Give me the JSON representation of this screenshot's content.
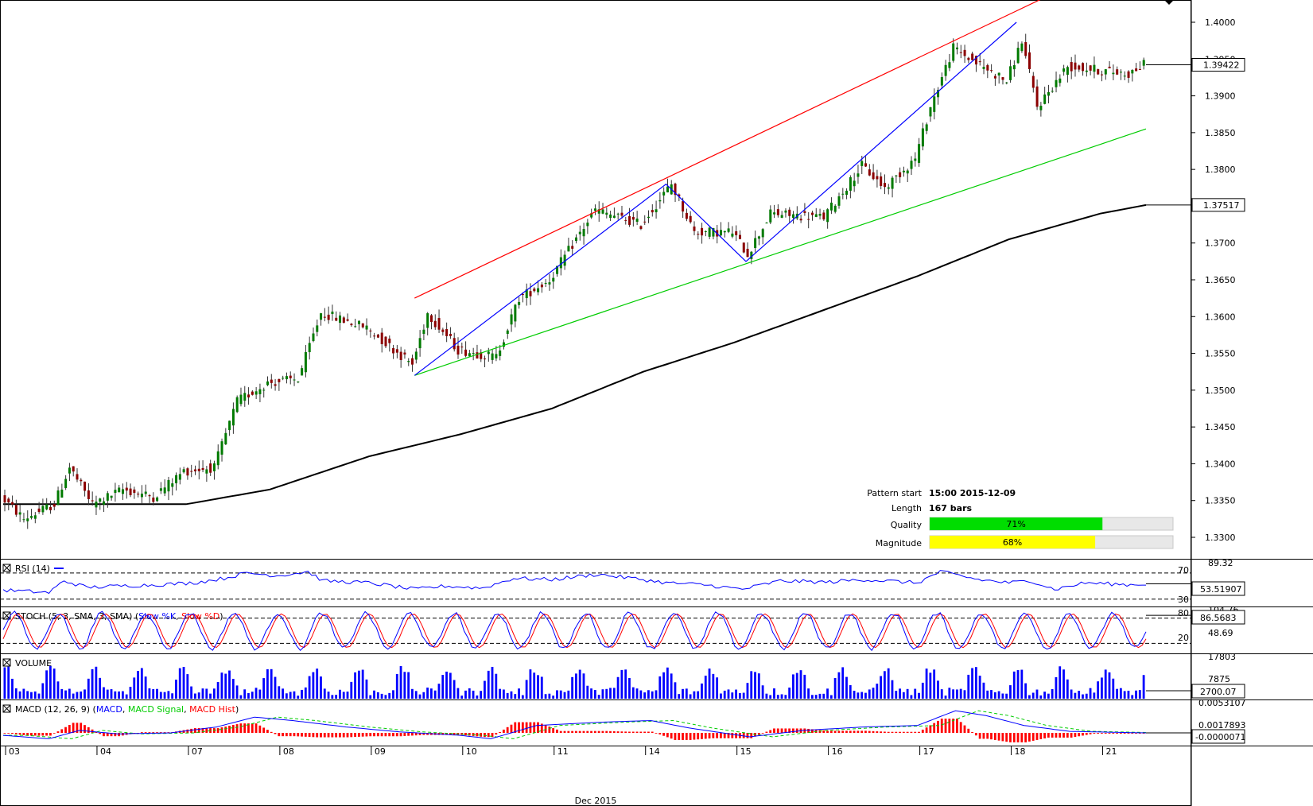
{
  "colors": {
    "bull": "#007a00",
    "bear": "#8b0000",
    "wick": "#333333",
    "ma": "#000000",
    "channel_upper": "#ff0000",
    "channel_lower": "#00cc00",
    "pattern_line": "#0000ff",
    "rsi": "#0000ff",
    "stoch_k": "#0000ff",
    "stoch_d": "#ff0000",
    "volume": "#0000ff",
    "macd": "#0000ff",
    "macd_signal": "#00cc00",
    "macd_hist": "#ff0000",
    "quality_bar": "#00dd00",
    "magnitude_bar": "#ffff00"
  },
  "chart_data": {
    "type": "candlestick",
    "instrument_note": "",
    "price_axis": {
      "ylim": [
        1.3275,
        1.4025
      ],
      "ticks": [
        "1.4000",
        "1.3950",
        "1.3900",
        "1.3850",
        "1.3800",
        "1.3750",
        "1.3700",
        "1.3650",
        "1.3600",
        "1.3550",
        "1.3500",
        "1.3450",
        "1.3400",
        "1.3350",
        "1.3300"
      ],
      "tick_values": [
        1.4,
        1.395,
        1.39,
        1.385,
        1.38,
        1.375,
        1.37,
        1.365,
        1.36,
        1.355,
        1.35,
        1.345,
        1.34,
        1.335,
        1.33
      ]
    },
    "x_axis": {
      "day_labels": [
        "03",
        "04",
        "07",
        "08",
        "09",
        "10",
        "11",
        "14",
        "15",
        "16",
        "17",
        "18",
        "21"
      ],
      "day_bar_index": [
        0,
        24,
        48,
        72,
        96,
        120,
        144,
        168,
        192,
        216,
        240,
        264,
        288
      ],
      "month_label": "Dec 2015",
      "total_bars": 300
    },
    "current_price_tag": "1.39422",
    "current_price": 1.39422,
    "ma_tag": "1.37517",
    "ma_value": 1.37517,
    "ma_path": [
      [
        0,
        1.3345
      ],
      [
        48,
        1.3345
      ],
      [
        70,
        1.3365
      ],
      [
        96,
        1.341
      ],
      [
        120,
        1.344
      ],
      [
        144,
        1.3475
      ],
      [
        168,
        1.3525
      ],
      [
        192,
        1.3565
      ],
      [
        216,
        1.361
      ],
      [
        240,
        1.3655
      ],
      [
        264,
        1.3705
      ],
      [
        288,
        1.374
      ],
      [
        300,
        1.37517
      ]
    ],
    "price_path": [
      [
        0,
        1.3355
      ],
      [
        6,
        1.3325
      ],
      [
        14,
        1.3345
      ],
      [
        18,
        1.3395
      ],
      [
        24,
        1.3345
      ],
      [
        32,
        1.3365
      ],
      [
        40,
        1.3355
      ],
      [
        48,
        1.339
      ],
      [
        56,
        1.3395
      ],
      [
        62,
        1.3485
      ],
      [
        70,
        1.351
      ],
      [
        78,
        1.3515
      ],
      [
        84,
        1.3605
      ],
      [
        96,
        1.3585
      ],
      [
        108,
        1.3535
      ],
      [
        112,
        1.3605
      ],
      [
        120,
        1.3555
      ],
      [
        130,
        1.3545
      ],
      [
        136,
        1.3625
      ],
      [
        144,
        1.365
      ],
      [
        156,
        1.3745
      ],
      [
        168,
        1.3725
      ],
      [
        176,
        1.378
      ],
      [
        182,
        1.3715
      ],
      [
        192,
        1.3715
      ],
      [
        196,
        1.3685
      ],
      [
        202,
        1.374
      ],
      [
        216,
        1.3735
      ],
      [
        226,
        1.3805
      ],
      [
        232,
        1.3775
      ],
      [
        240,
        1.3815
      ],
      [
        244,
        1.3885
      ],
      [
        250,
        1.3965
      ],
      [
        256,
        1.3945
      ],
      [
        264,
        1.392
      ],
      [
        268,
        1.3975
      ],
      [
        272,
        1.3885
      ],
      [
        280,
        1.394
      ],
      [
        288,
        1.3935
      ],
      [
        296,
        1.393
      ],
      [
        300,
        1.39422
      ]
    ],
    "channel_upper": [
      [
        108,
        1.3625
      ],
      [
        278,
        1.4045
      ]
    ],
    "channel_lower": [
      [
        108,
        1.352
      ],
      [
        300,
        1.3855
      ]
    ],
    "pattern_line": [
      [
        108,
        1.352
      ],
      [
        174,
        1.378
      ],
      [
        195,
        1.3675
      ],
      [
        266,
        1.4
      ]
    ],
    "rsi": {
      "label": "RSI (14)",
      "ylim": [
        20,
        89.32
      ],
      "levels": [
        70,
        30
      ],
      "scale_top": "89.32",
      "level_labels": [
        "70",
        "30"
      ],
      "tag": "53.51907",
      "path": [
        [
          0,
          44
        ],
        [
          12,
          40
        ],
        [
          16,
          58
        ],
        [
          22,
          48
        ],
        [
          30,
          50
        ],
        [
          40,
          52
        ],
        [
          50,
          55
        ],
        [
          58,
          62
        ],
        [
          64,
          70
        ],
        [
          72,
          66
        ],
        [
          80,
          72
        ],
        [
          84,
          58
        ],
        [
          96,
          55
        ],
        [
          108,
          45
        ],
        [
          116,
          50
        ],
        [
          126,
          47
        ],
        [
          134,
          62
        ],
        [
          144,
          60
        ],
        [
          156,
          68
        ],
        [
          168,
          60
        ],
        [
          174,
          55
        ],
        [
          184,
          52
        ],
        [
          194,
          45
        ],
        [
          204,
          58
        ],
        [
          216,
          56
        ],
        [
          226,
          60
        ],
        [
          240,
          55
        ],
        [
          246,
          72
        ],
        [
          256,
          60
        ],
        [
          264,
          55
        ],
        [
          270,
          58
        ],
        [
          276,
          45
        ],
        [
          284,
          55
        ],
        [
          296,
          52
        ],
        [
          300,
          53.5
        ]
      ]
    },
    "stoch": {
      "label": "STOCH (5, 3, SMA, 3, SMA)",
      "legend_k": "Slow %K",
      "legend_d": "Slow %D",
      "ylim": [
        0,
        100
      ],
      "levels": [
        80,
        20
      ],
      "scale_top": "104.76",
      "level_labels": [
        "80",
        "20"
      ],
      "mid_label": "48.69",
      "tag": "86.5683",
      "cycles": 26
    },
    "volume": {
      "label": "VOLUME",
      "ylim": [
        0,
        17803
      ],
      "scale_top": "17803",
      "mid_label": "7875",
      "tag": "2700.07"
    },
    "macd": {
      "label": "MACD (12, 26, 9)",
      "legend_macd": "MACD",
      "legend_signal": "MACD Signal",
      "legend_hist": "MACD Hist",
      "scale_top": "0.0053107",
      "mid_label": "0.0017893",
      "tag": "-0.0000071",
      "path": [
        [
          0,
          -0.0005
        ],
        [
          12,
          -0.0012
        ],
        [
          20,
          0.0005
        ],
        [
          30,
          -0.0002
        ],
        [
          44,
          0.0
        ],
        [
          56,
          0.0012
        ],
        [
          66,
          0.0032
        ],
        [
          76,
          0.0025
        ],
        [
          90,
          0.0012
        ],
        [
          104,
          0.0002
        ],
        [
          120,
          -0.0005
        ],
        [
          128,
          -0.0012
        ],
        [
          140,
          0.0015
        ],
        [
          158,
          0.0022
        ],
        [
          170,
          0.0025
        ],
        [
          180,
          0.001
        ],
        [
          196,
          -0.0008
        ],
        [
          210,
          0.0005
        ],
        [
          226,
          0.0012
        ],
        [
          240,
          0.0015
        ],
        [
          250,
          0.0045
        ],
        [
          258,
          0.0035
        ],
        [
          268,
          0.0015
        ],
        [
          280,
          0.0003
        ],
        [
          300,
          -7.1e-06
        ]
      ]
    },
    "pattern_info": {
      "start_label": "Pattern start",
      "start_value": "15:00 2015-12-09",
      "length_label": "Length",
      "length_value": "167 bars",
      "quality_label": "Quality",
      "quality_value": "71%",
      "quality_fraction": 0.71,
      "magnitude_label": "Magnitude",
      "magnitude_value": "68%",
      "magnitude_fraction": 0.68
    }
  }
}
